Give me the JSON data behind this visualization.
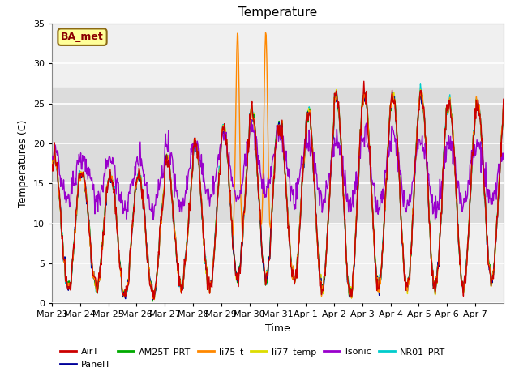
{
  "title": "Temperature",
  "xlabel": "Time",
  "ylabel": "Temperatures (C)",
  "ylim": [
    0,
    35
  ],
  "annotation_text": "BA_met",
  "annotation_color": "#8B0000",
  "annotation_bg": "#FFFF99",
  "annotation_edge": "#8B6914",
  "bg_band_low": 10,
  "bg_band_high": 27,
  "bg_band_color": "#DCDCDC",
  "series_colors": {
    "AirT": "#CC0000",
    "PanelT": "#000099",
    "AM25T_PRT": "#00AA00",
    "li75_t": "#FF8800",
    "li77_temp": "#DDDD00",
    "Tsonic": "#9900CC",
    "NR01_PRT": "#00CCCC"
  },
  "tick_dates": [
    "Mar 23",
    "Mar 24",
    "Mar 25",
    "Mar 26",
    "Mar 27",
    "Mar 28",
    "Mar 29",
    "Mar 30",
    "Mar 31",
    "Apr 1",
    "Apr 2",
    "Apr 3",
    "Apr 4",
    "Apr 5",
    "Apr 6",
    "Apr 7"
  ],
  "yticks": [
    0,
    5,
    10,
    15,
    20,
    25,
    30,
    35
  ]
}
